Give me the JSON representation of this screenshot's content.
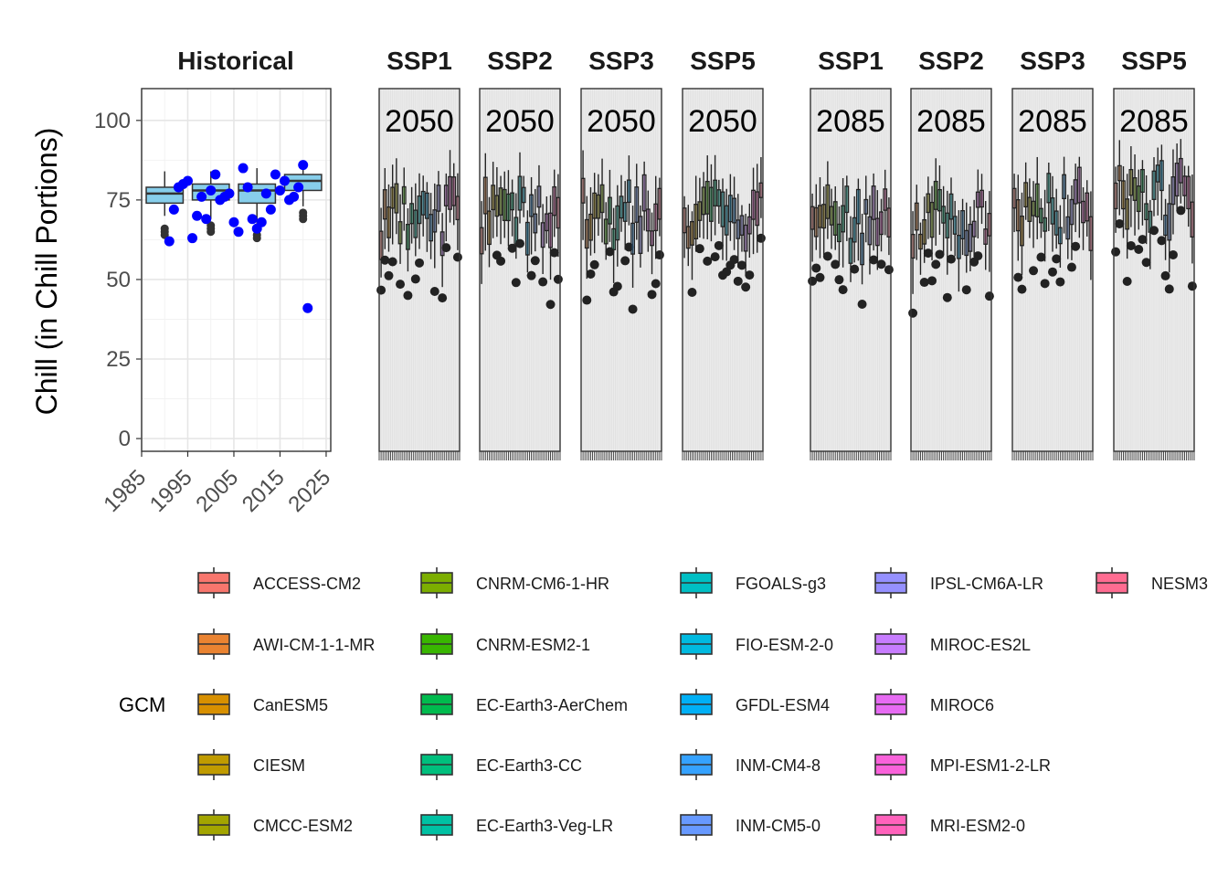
{
  "chart_data": {
    "type": "box",
    "ylabel": "Chill (in Chill Portions)",
    "ylim": [
      -4,
      110
    ],
    "yticks": [
      0,
      25,
      50,
      75,
      100
    ],
    "grid": true,
    "legend_position": "bottom",
    "legend_title": "GCM",
    "historical": {
      "strip": "Historical",
      "xlim": [
        1985,
        2026
      ],
      "xticks": [
        1985,
        1995,
        2005,
        2015,
        2025
      ],
      "boxes": [
        {
          "x": 1990,
          "min": 70,
          "q1": 74,
          "median": 77,
          "q3": 79,
          "max": 84,
          "outliers": [
            66,
            65,
            64
          ]
        },
        {
          "x": 2000,
          "min": 69,
          "q1": 75,
          "median": 78,
          "q3": 80,
          "max": 84,
          "outliers": [
            67,
            66,
            65
          ]
        },
        {
          "x": 2010,
          "min": 67,
          "q1": 74,
          "median": 78,
          "q3": 80,
          "max": 85,
          "outliers": [
            64,
            63
          ]
        },
        {
          "x": 2020,
          "min": 73,
          "q1": 78,
          "median": 81,
          "q3": 83,
          "max": 87,
          "outliers": [
            71,
            70,
            69
          ]
        }
      ],
      "observations": {
        "x": [
          1991,
          1992,
          1993,
          1994,
          1995,
          1996,
          1997,
          1998,
          1999,
          2000,
          2001,
          2002,
          2003,
          2004,
          2005,
          2006,
          2007,
          2008,
          2009,
          2010,
          2011,
          2012,
          2013,
          2014,
          2015,
          2016,
          2017,
          2018,
          2019,
          2020,
          2021
        ],
        "y": [
          62,
          72,
          79,
          80,
          81,
          63,
          70,
          76,
          69,
          78,
          83,
          75,
          76,
          77,
          68,
          65,
          85,
          79,
          69,
          66,
          68,
          77,
          72,
          83,
          78,
          81,
          75,
          76,
          79,
          86,
          41
        ]
      }
    },
    "scenarios": [
      {
        "strip": "SSP1",
        "year": "2050"
      },
      {
        "strip": "SSP2",
        "year": "2050"
      },
      {
        "strip": "SSP3",
        "year": "2050"
      },
      {
        "strip": "SSP5",
        "year": "2050"
      },
      {
        "strip": "SSP1",
        "year": "2085"
      },
      {
        "strip": "SSP2",
        "year": "2085"
      },
      {
        "strip": "SSP3",
        "year": "2085"
      },
      {
        "strip": "SSP5",
        "year": "2085"
      }
    ],
    "legend": [
      {
        "name": "ACCESS-CM2",
        "color": "#F8766D"
      },
      {
        "name": "AWI-CM-1-1-MR",
        "color": "#EA8331"
      },
      {
        "name": "CanESM5",
        "color": "#D89000"
      },
      {
        "name": "CIESM",
        "color": "#C09B00"
      },
      {
        "name": "CMCC-ESM2",
        "color": "#A3A500"
      },
      {
        "name": "CNRM-CM6-1-HR",
        "color": "#7CAE00"
      },
      {
        "name": "CNRM-ESM2-1",
        "color": "#39B600"
      },
      {
        "name": "EC-Earth3-AerChem",
        "color": "#00BB4E"
      },
      {
        "name": "EC-Earth3-CC",
        "color": "#00BF7D"
      },
      {
        "name": "EC-Earth3-Veg-LR",
        "color": "#00C1A3"
      },
      {
        "name": "FGOALS-g3",
        "color": "#00BFC4"
      },
      {
        "name": "FIO-ESM-2-0",
        "color": "#00BAE0"
      },
      {
        "name": "GFDL-ESM4",
        "color": "#00B0F6"
      },
      {
        "name": "INM-CM4-8",
        "color": "#35A2FF"
      },
      {
        "name": "INM-CM5-0",
        "color": "#6799FF"
      },
      {
        "name": "IPSL-CM6A-LR",
        "color": "#9590FF"
      },
      {
        "name": "MIROC-ES2L",
        "color": "#C77CFF"
      },
      {
        "name": "MIROC6",
        "color": "#E76BF3"
      },
      {
        "name": "MPI-ESM1-2-LR",
        "color": "#FA62DB"
      },
      {
        "name": "MRI-ESM2-0",
        "color": "#FF62BC"
      },
      {
        "name": "NESM3",
        "color": "#FF6C91"
      }
    ],
    "colors": {
      "historical_box_fill": "#87CEEB",
      "observation_points": "#0000FF",
      "future_box_stroke": "#222222",
      "panel_background_future": "#EBEBEB",
      "grid": "#E6E6E6"
    }
  }
}
